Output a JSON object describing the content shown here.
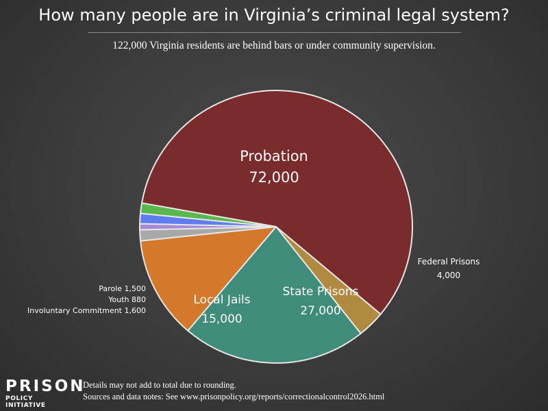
{
  "title": "How many people are in Virginia’s criminal legal system?",
  "subtitle": "122,000 Virginia residents are behind bars or under community supervision.",
  "chart_data": {
    "type": "pie",
    "total": 122000,
    "slices": [
      {
        "label": "Probation",
        "value": 72000,
        "value_text": "72,000",
        "color": "#7a2b2b"
      },
      {
        "label": "Federal Prisons",
        "value": 4000,
        "value_text": "4,000",
        "color": "#b08a3e"
      },
      {
        "label": "State Prisons",
        "value": 27000,
        "value_text": "27,000",
        "color": "#3f8c7a"
      },
      {
        "label": "Local Jails",
        "value": 15000,
        "value_text": "15,000",
        "color": "#d4782b"
      },
      {
        "label": "Involuntary Commitment",
        "value": 1600,
        "value_text": "1,600",
        "color": "#a8a8a8"
      },
      {
        "label": "Youth",
        "value": 880,
        "value_text": "880",
        "color": "#a58ad6"
      },
      {
        "label": "Parole",
        "value": 1500,
        "value_text": "1,500",
        "color": "#5e7ef0"
      },
      {
        "label": "",
        "value": 1500,
        "value_text": "",
        "color": "#58b84e"
      }
    ]
  },
  "labels": {
    "probation_name": "Probation",
    "probation_value": "72,000",
    "state_name": "State Prisons",
    "state_value": "27,000",
    "jails_name": "Local Jails",
    "jails_value": "15,000",
    "federal_name": "Federal Prisons",
    "federal_value": "4,000",
    "parole": "Parole 1,500",
    "youth": "Youth 880",
    "commitment": "Involuntary Commitment 1,600"
  },
  "logo": {
    "top": "PRISON",
    "bottom": "POLICY INITIATIVE"
  },
  "footnotes": {
    "line1": "Details may not add to total due to rounding.",
    "line2": "Sources and data notes: See www.prisonpolicy.org/reports/correctionalcontrol2026.html"
  }
}
